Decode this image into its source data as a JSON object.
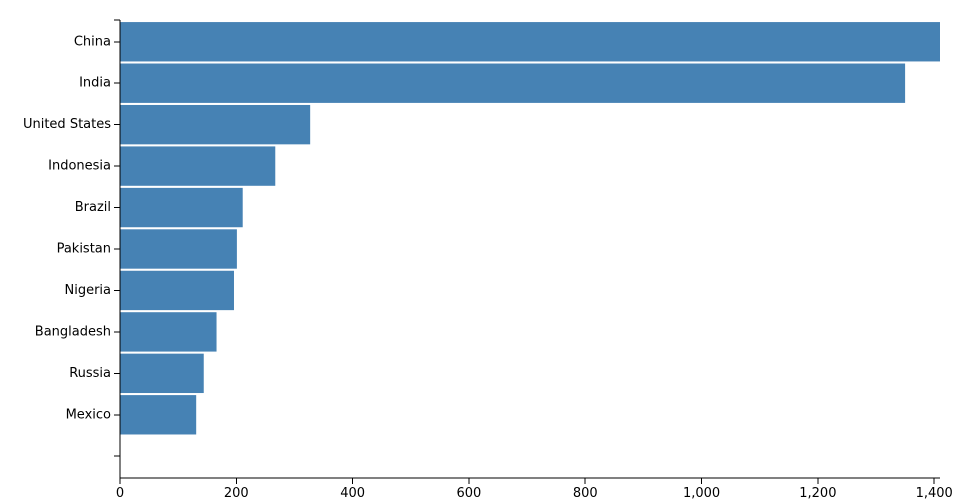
{
  "chart_data": {
    "type": "bar",
    "orientation": "horizontal",
    "categories": [
      "China",
      "India",
      "United States",
      "Indonesia",
      "Brazil",
      "Pakistan",
      "Nigeria",
      "Bangladesh",
      "Russia",
      "Mexico"
    ],
    "values": [
      1410,
      1350,
      327,
      267,
      211,
      201,
      196,
      166,
      144,
      131
    ],
    "x_ticks": [
      0,
      200,
      400,
      600,
      800,
      1000,
      1200,
      1400
    ],
    "x_tick_labels": [
      "0",
      "200",
      "400",
      "600",
      "800",
      "1,000",
      "1,200",
      "1,400"
    ],
    "xlim": [
      0,
      1410
    ],
    "bar_color": "#4682b4",
    "grid": false,
    "legend": "none"
  }
}
